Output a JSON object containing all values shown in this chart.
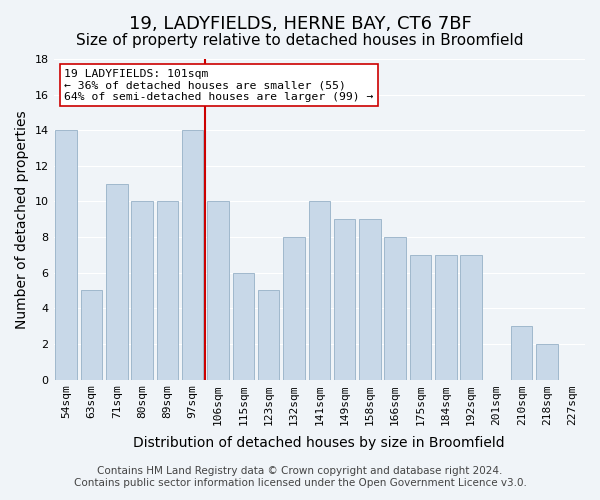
{
  "title": "19, LADYFIELDS, HERNE BAY, CT6 7BF",
  "subtitle": "Size of property relative to detached houses in Broomfield",
  "xlabel": "Distribution of detached houses by size in Broomfield",
  "ylabel": "Number of detached properties",
  "categories": [
    "54sqm",
    "63sqm",
    "71sqm",
    "80sqm",
    "89sqm",
    "97sqm",
    "106sqm",
    "115sqm",
    "123sqm",
    "132sqm",
    "141sqm",
    "149sqm",
    "158sqm",
    "166sqm",
    "175sqm",
    "184sqm",
    "192sqm",
    "201sqm",
    "210sqm",
    "218sqm",
    "227sqm"
  ],
  "values": [
    14,
    5,
    11,
    10,
    10,
    14,
    10,
    6,
    5,
    8,
    10,
    9,
    9,
    8,
    7,
    7,
    7,
    0,
    3,
    2,
    0
  ],
  "bar_color": "#c8d8e8",
  "bar_edge_color": "#a0b8cc",
  "highlight_index": 6,
  "highlight_line_color": "#cc0000",
  "annotation_line1": "19 LADYFIELDS: 101sqm",
  "annotation_line2": "← 36% of detached houses are smaller (55)",
  "annotation_line3": "64% of semi-detached houses are larger (99) →",
  "annotation_box_color": "#ffffff",
  "annotation_box_edge_color": "#cc0000",
  "ylim": [
    0,
    18
  ],
  "yticks": [
    0,
    2,
    4,
    6,
    8,
    10,
    12,
    14,
    16,
    18
  ],
  "footer_line1": "Contains HM Land Registry data © Crown copyright and database right 2024.",
  "footer_line2": "Contains public sector information licensed under the Open Government Licence v3.0.",
  "background_color": "#f0f4f8",
  "plot_background_color": "#f0f4f8",
  "title_fontsize": 13,
  "subtitle_fontsize": 11,
  "axis_label_fontsize": 10,
  "tick_fontsize": 8,
  "footer_fontsize": 7.5
}
